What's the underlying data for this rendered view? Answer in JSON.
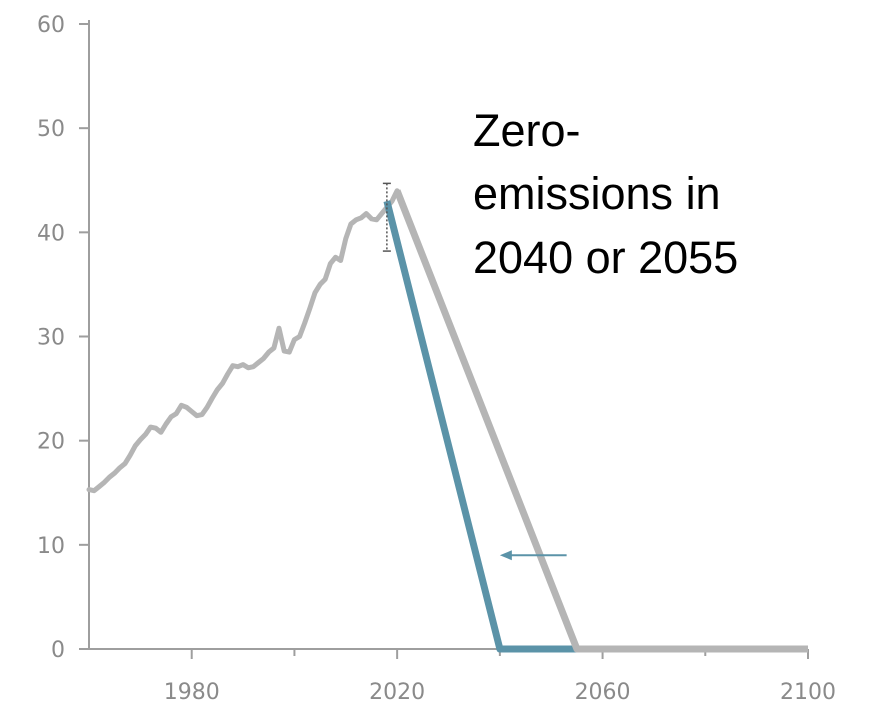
{
  "colors": {
    "axis": "#9e9e9e",
    "history": "#b5b5b5",
    "path_2055": "#b5b5b5",
    "path_2040": "#5b93a8",
    "arrow": "#5b93a8",
    "uncertainty": "#555555",
    "tick_text": "#8a8a8a",
    "annotation_text": "#000000"
  },
  "chart_data": {
    "type": "line",
    "title": "",
    "xlabel": "",
    "ylabel": "",
    "xlim": [
      1960,
      2100
    ],
    "ylim": [
      0,
      60
    ],
    "x_ticks": [
      1980,
      2020,
      2060,
      2100
    ],
    "y_ticks": [
      0,
      10,
      20,
      30,
      40,
      50,
      60
    ],
    "grid": false,
    "legend": "none",
    "series": [
      {
        "points": [
          [
            1960,
            15.3
          ],
          [
            1961,
            15.2
          ],
          [
            1962,
            15.6
          ],
          [
            1963,
            16.0
          ],
          [
            1964,
            16.5
          ],
          [
            1965,
            16.9
          ],
          [
            1966,
            17.4
          ],
          [
            1967,
            17.8
          ],
          [
            1968,
            18.6
          ],
          [
            1969,
            19.5
          ],
          [
            1970,
            20.1
          ],
          [
            1971,
            20.6
          ],
          [
            1972,
            21.3
          ],
          [
            1973,
            21.2
          ],
          [
            1974,
            20.8
          ],
          [
            1975,
            21.6
          ],
          [
            1976,
            22.3
          ],
          [
            1977,
            22.6
          ],
          [
            1978,
            23.4
          ],
          [
            1979,
            23.2
          ],
          [
            1980,
            22.8
          ],
          [
            1981,
            22.4
          ],
          [
            1982,
            22.5
          ],
          [
            1983,
            23.2
          ],
          [
            1984,
            24.1
          ],
          [
            1985,
            24.9
          ],
          [
            1986,
            25.5
          ],
          [
            1987,
            26.4
          ],
          [
            1988,
            27.2
          ],
          [
            1989,
            27.1
          ],
          [
            1990,
            27.3
          ],
          [
            1991,
            27.0
          ],
          [
            1992,
            27.1
          ],
          [
            1993,
            27.5
          ],
          [
            1994,
            27.9
          ],
          [
            1995,
            28.5
          ],
          [
            1996,
            28.9
          ],
          [
            1997,
            30.8
          ],
          [
            1998,
            28.6
          ],
          [
            1999,
            28.5
          ],
          [
            2000,
            29.7
          ],
          [
            2001,
            30.0
          ],
          [
            2002,
            31.3
          ],
          [
            2003,
            32.7
          ],
          [
            2004,
            34.2
          ],
          [
            2005,
            35.0
          ],
          [
            2006,
            35.5
          ],
          [
            2007,
            37.0
          ],
          [
            2008,
            37.6
          ],
          [
            2009,
            37.3
          ],
          [
            2010,
            39.4
          ],
          [
            2011,
            40.8
          ],
          [
            2012,
            41.2
          ],
          [
            2013,
            41.4
          ],
          [
            2014,
            41.8
          ],
          [
            2015,
            41.3
          ],
          [
            2016,
            41.2
          ],
          [
            2017,
            41.8
          ],
          [
            2018,
            42.4
          ],
          [
            2019,
            43.0
          ],
          [
            2020,
            44.0
          ]
        ]
      },
      {
        "points": [
          [
            2020,
            44.0
          ],
          [
            2055,
            0
          ],
          [
            2100,
            0
          ]
        ]
      },
      {
        "points": [
          [
            2018,
            43.0
          ],
          [
            2040,
            0
          ],
          [
            2055,
            0
          ]
        ]
      }
    ],
    "uncertainty_bar": {
      "x": 2018,
      "low": 38.2,
      "high": 44.7
    },
    "arrow": {
      "from": [
        2053,
        9
      ],
      "to": [
        2040,
        9
      ]
    },
    "annotation": {
      "lines": [
        "Zero-",
        "emissions in",
        "2040 or 2055"
      ]
    }
  }
}
